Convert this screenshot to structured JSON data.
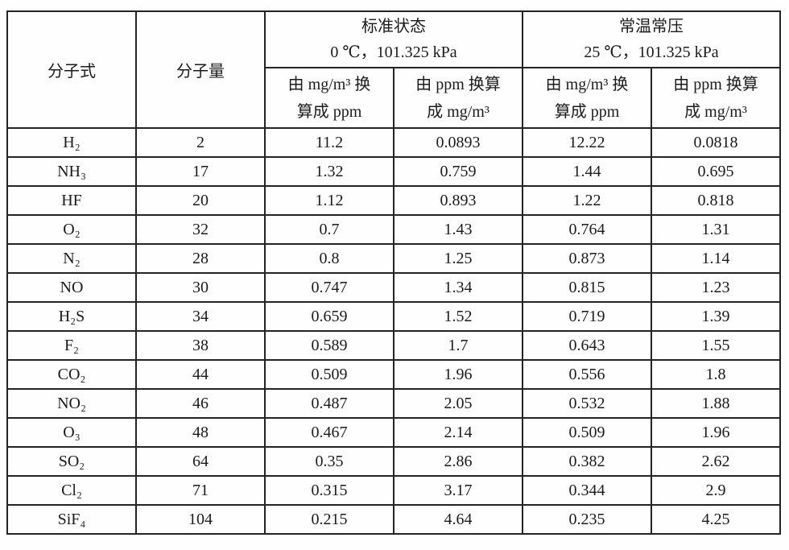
{
  "table": {
    "header": {
      "formula_label": "分子式",
      "weight_label": "分子量",
      "groups": [
        {
          "title": "标准状态",
          "condition": "0 ℃，101.325 kPa",
          "sub_mg_to_ppm": "由 mg/m³ 换\n算成 ppm",
          "sub_ppm_to_mg": "由 ppm 换算\n成 mg/m³"
        },
        {
          "title": "常温常压",
          "condition": "25 ℃，101.325 kPa",
          "sub_mg_to_ppm": "由 mg/m³ 换\n算成 ppm",
          "sub_ppm_to_mg": "由 ppm 换算\n成 mg/m³"
        }
      ]
    },
    "rows": [
      {
        "formula": "H₂",
        "weight": "2",
        "std_mg_to_ppm": "11.2",
        "std_ppm_to_mg": "0.0893",
        "ntp_mg_to_ppm": "12.22",
        "ntp_ppm_to_mg": "0.0818"
      },
      {
        "formula": "NH₃",
        "weight": "17",
        "std_mg_to_ppm": "1.32",
        "std_ppm_to_mg": "0.759",
        "ntp_mg_to_ppm": "1.44",
        "ntp_ppm_to_mg": "0.695"
      },
      {
        "formula": "HF",
        "weight": "20",
        "std_mg_to_ppm": "1.12",
        "std_ppm_to_mg": "0.893",
        "ntp_mg_to_ppm": "1.22",
        "ntp_ppm_to_mg": "0.818"
      },
      {
        "formula": "O₂",
        "weight": "32",
        "std_mg_to_ppm": "0.7",
        "std_ppm_to_mg": "1.43",
        "ntp_mg_to_ppm": "0.764",
        "ntp_ppm_to_mg": "1.31"
      },
      {
        "formula": "N₂",
        "weight": "28",
        "std_mg_to_ppm": "0.8",
        "std_ppm_to_mg": "1.25",
        "ntp_mg_to_ppm": "0.873",
        "ntp_ppm_to_mg": "1.14"
      },
      {
        "formula": "NO",
        "weight": "30",
        "std_mg_to_ppm": "0.747",
        "std_ppm_to_mg": "1.34",
        "ntp_mg_to_ppm": "0.815",
        "ntp_ppm_to_mg": "1.23"
      },
      {
        "formula": "H₂S",
        "weight": "34",
        "std_mg_to_ppm": "0.659",
        "std_ppm_to_mg": "1.52",
        "ntp_mg_to_ppm": "0.719",
        "ntp_ppm_to_mg": "1.39"
      },
      {
        "formula": "F₂",
        "weight": "38",
        "std_mg_to_ppm": "0.589",
        "std_ppm_to_mg": "1.7",
        "ntp_mg_to_ppm": "0.643",
        "ntp_ppm_to_mg": "1.55"
      },
      {
        "formula": "CO₂",
        "weight": "44",
        "std_mg_to_ppm": "0.509",
        "std_ppm_to_mg": "1.96",
        "ntp_mg_to_ppm": "0.556",
        "ntp_ppm_to_mg": "1.8"
      },
      {
        "formula": "NO₂",
        "weight": "46",
        "std_mg_to_ppm": "0.487",
        "std_ppm_to_mg": "2.05",
        "ntp_mg_to_ppm": "0.532",
        "ntp_ppm_to_mg": "1.88"
      },
      {
        "formula": "O₃",
        "weight": "48",
        "std_mg_to_ppm": "0.467",
        "std_ppm_to_mg": "2.14",
        "ntp_mg_to_ppm": "0.509",
        "ntp_ppm_to_mg": "1.96"
      },
      {
        "formula": "SO₂",
        "weight": "64",
        "std_mg_to_ppm": "0.35",
        "std_ppm_to_mg": "2.86",
        "ntp_mg_to_ppm": "0.382",
        "ntp_ppm_to_mg": "2.62"
      },
      {
        "formula": "Cl₂",
        "weight": "71",
        "std_mg_to_ppm": "0.315",
        "std_ppm_to_mg": "3.17",
        "ntp_mg_to_ppm": "0.344",
        "ntp_ppm_to_mg": "2.9"
      },
      {
        "formula": "SiF₄",
        "weight": "104",
        "std_mg_to_ppm": "0.215",
        "std_ppm_to_mg": "4.64",
        "ntp_mg_to_ppm": "0.235",
        "ntp_ppm_to_mg": "4.25"
      }
    ]
  },
  "colors": {
    "border": "#242424",
    "background": "#fefefe",
    "text": "#1b1b1b"
  }
}
